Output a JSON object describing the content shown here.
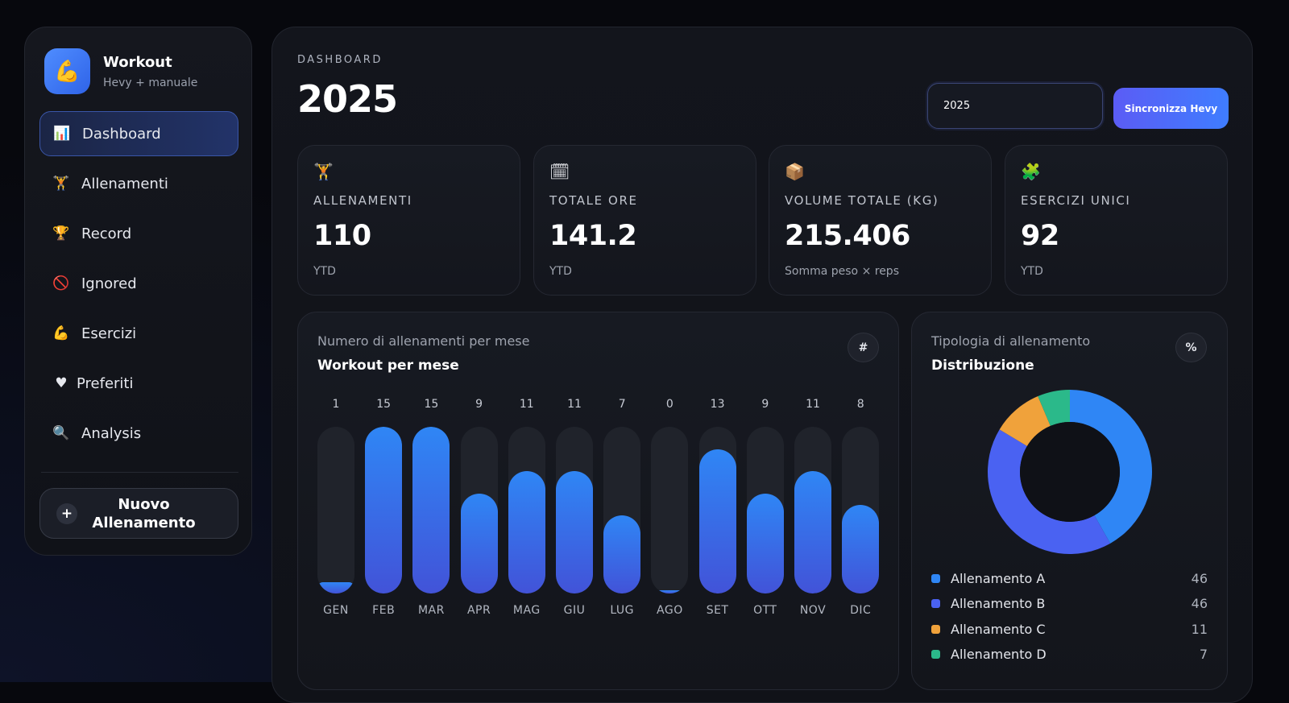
{
  "colors": {
    "accent": "#3f7dff",
    "bar_top": "#2f86f5",
    "bar_bottom": "#4253d8",
    "type_a": "#2f86f5",
    "type_b": "#4a62f2",
    "type_c": "#f0a23b",
    "type_d": "#2bb98a"
  },
  "brand": {
    "icon": "flexed-biceps-icon",
    "glyph": "💪",
    "title": "Workout",
    "subtitle": "Hevy + manuale"
  },
  "nav": [
    {
      "id": "dashboard",
      "glyph": "📊",
      "icon": "bar-chart-icon",
      "label": "Dashboard",
      "active": true
    },
    {
      "id": "allenamenti",
      "glyph": "🏋",
      "icon": "weightlifter-icon",
      "label": "Allenamenti"
    },
    {
      "id": "record",
      "glyph": "🏆",
      "icon": "trophy-icon",
      "label": "Record"
    },
    {
      "id": "ignored",
      "glyph": "🚫",
      "icon": "prohibited-icon",
      "label": "Ignored"
    },
    {
      "id": "esercizi",
      "glyph": "💪",
      "icon": "flexed-biceps-icon",
      "label": "Esercizi"
    },
    {
      "id": "preferiti",
      "glyph": "♥",
      "icon": "heart-icon",
      "label": "Preferiti"
    },
    {
      "id": "analysis",
      "glyph": "🔍",
      "icon": "magnifier-icon",
      "label": "Analysis"
    }
  ],
  "new_workout": {
    "plus": "+",
    "line1": "Nuovo",
    "line2": "Allenamento"
  },
  "header": {
    "eyebrow": "DASHBOARD",
    "title": "2025",
    "year_value": "2025",
    "sync_label": "Sincronizza Hevy"
  },
  "stats": [
    {
      "glyph": "🏋",
      "icon": "weightlifter-icon",
      "label": "ALLENAMENTI",
      "value": "110",
      "sub": "YTD"
    },
    {
      "glyph": "🗓",
      "icon": "calendar-icon",
      "label": "TOTALE ORE",
      "value": "141.2",
      "sub": "YTD"
    },
    {
      "glyph": "📦",
      "icon": "package-icon",
      "label": "VOLUME TOTALE (KG)",
      "value": "215.406",
      "sub": "Somma peso × reps"
    },
    {
      "glyph": "🧩",
      "icon": "puzzle-piece-icon",
      "label": "ESERCIZI UNICI",
      "value": "92",
      "sub": "YTD"
    }
  ],
  "monthly_panel": {
    "subtitle": "Numero di allenamenti per mese",
    "title": "Workout per mese",
    "badge": "#"
  },
  "type_panel": {
    "subtitle": "Tipologia di allenamento",
    "title": "Distribuzione",
    "badge": "%"
  },
  "chart_data": [
    {
      "type": "bar",
      "title": "Workout per mese",
      "subtitle": "Numero di allenamenti per mese",
      "categories": [
        "GEN",
        "FEB",
        "MAR",
        "APR",
        "MAG",
        "GIU",
        "LUG",
        "AGO",
        "SET",
        "OTT",
        "NOV",
        "DIC"
      ],
      "values": [
        1,
        15,
        15,
        9,
        11,
        11,
        7,
        0,
        13,
        9,
        11,
        8
      ],
      "ylim": [
        0,
        15
      ],
      "grid": false
    },
    {
      "type": "pie",
      "title": "Distribuzione",
      "subtitle": "Tipologia di allenamento",
      "series": [
        {
          "name": "Allenamento A",
          "value": 46,
          "color": "#2f86f5"
        },
        {
          "name": "Allenamento B",
          "value": 46,
          "color": "#4a62f2"
        },
        {
          "name": "Allenamento C",
          "value": 11,
          "color": "#f0a23b"
        },
        {
          "name": "Allenamento D",
          "value": 7,
          "color": "#2bb98a"
        }
      ],
      "legend": "bottom"
    }
  ]
}
